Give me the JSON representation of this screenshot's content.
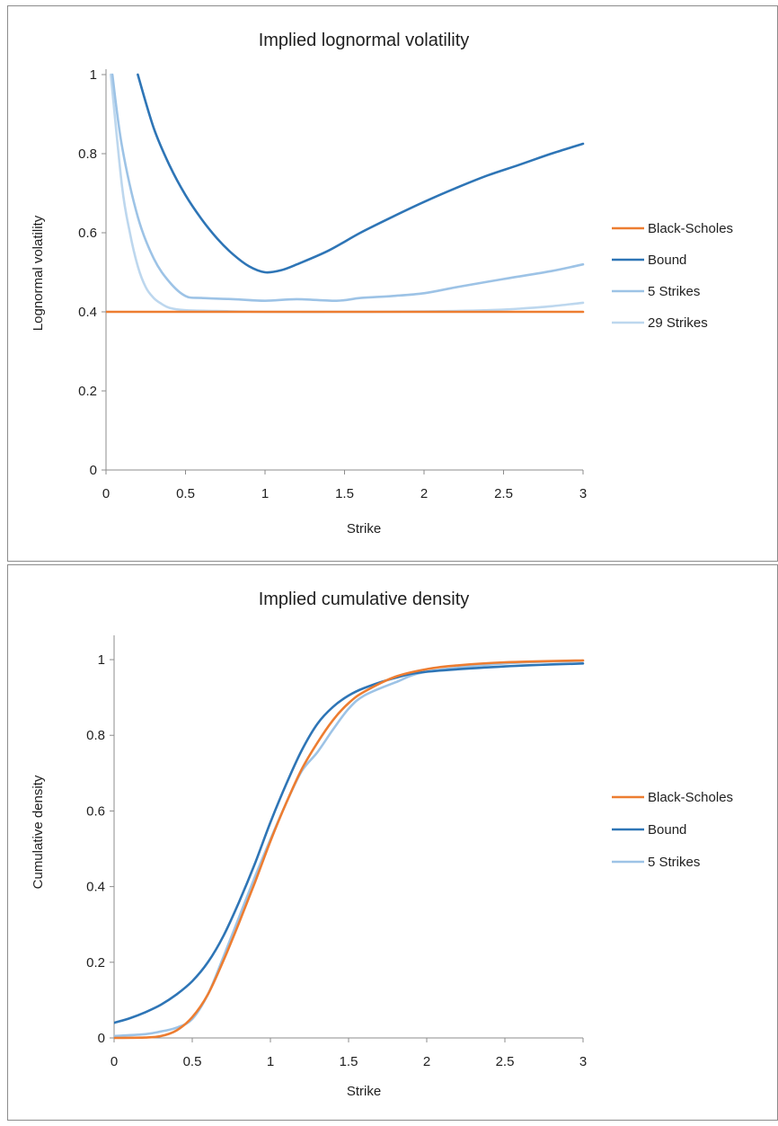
{
  "chart_data": [
    {
      "type": "line",
      "title": "Implied lognormal volatility",
      "xlabel": "Strike",
      "ylabel": "Lognormal volatility",
      "xlim": [
        0,
        3
      ],
      "ylim": [
        0,
        1
      ],
      "xticks": [
        "0",
        "0.5",
        "1",
        "1.5",
        "2",
        "2.5",
        "3"
      ],
      "yticks": [
        "0",
        "0.2",
        "0.4",
        "0.6",
        "0.8",
        "1"
      ],
      "grid": false,
      "legend": "right",
      "series": [
        {
          "name": "Black-Scholes",
          "color": "#ED7D31",
          "x": [
            0,
            3
          ],
          "y": [
            0.4,
            0.4
          ]
        },
        {
          "name": "Bound",
          "color": "#2E75B6",
          "x": [
            0.2,
            0.3,
            0.4,
            0.5,
            0.6,
            0.7,
            0.8,
            0.9,
            1.0,
            1.1,
            1.2,
            1.4,
            1.6,
            1.8,
            2.0,
            2.2,
            2.4,
            2.6,
            2.8,
            3.0
          ],
          "y": [
            1.0,
            0.865,
            0.77,
            0.695,
            0.635,
            0.585,
            0.545,
            0.515,
            0.5,
            0.505,
            0.52,
            0.555,
            0.6,
            0.64,
            0.678,
            0.713,
            0.745,
            0.772,
            0.8,
            0.825
          ]
        },
        {
          "name": "5 Strikes",
          "color": "#9DC3E6",
          "x": [
            0.04,
            0.1,
            0.2,
            0.3,
            0.4,
            0.5,
            0.6,
            0.8,
            1.0,
            1.2,
            1.45,
            1.6,
            1.8,
            2.0,
            2.2,
            2.5,
            2.8,
            3.0
          ],
          "y": [
            1.0,
            0.82,
            0.64,
            0.535,
            0.475,
            0.44,
            0.435,
            0.432,
            0.428,
            0.432,
            0.428,
            0.435,
            0.44,
            0.447,
            0.462,
            0.483,
            0.503,
            0.52
          ]
        },
        {
          "name": "29 Strikes",
          "color": "#BDD7EE",
          "x": [
            0.03,
            0.1,
            0.15,
            0.2,
            0.25,
            0.3,
            0.35,
            0.4,
            0.5,
            0.7,
            1.0,
            1.5,
            2.0,
            2.4,
            2.6,
            2.8,
            3.0
          ],
          "y": [
            1.0,
            0.72,
            0.6,
            0.515,
            0.462,
            0.435,
            0.42,
            0.41,
            0.404,
            0.402,
            0.4,
            0.4,
            0.401,
            0.404,
            0.408,
            0.414,
            0.423
          ]
        }
      ]
    },
    {
      "type": "line",
      "title": "Implied cumulative density",
      "xlabel": "Strike",
      "ylabel": "Cumulative density",
      "xlim": [
        0,
        3
      ],
      "ylim": [
        0,
        1.05
      ],
      "xticks": [
        "0",
        "0.5",
        "1",
        "1.5",
        "2",
        "2.5",
        "3"
      ],
      "yticks": [
        "0",
        "0.2",
        "0.4",
        "0.6",
        "0.8",
        "1"
      ],
      "grid": false,
      "legend": "right",
      "series": [
        {
          "name": "Black-Scholes",
          "color": "#ED7D31",
          "x": [
            0,
            0.2,
            0.3,
            0.4,
            0.5,
            0.6,
            0.7,
            0.8,
            0.9,
            1.0,
            1.1,
            1.2,
            1.3,
            1.4,
            1.5,
            1.6,
            1.8,
            2.0,
            2.2,
            2.5,
            3.0
          ],
          "y": [
            0,
            0.001,
            0.005,
            0.02,
            0.055,
            0.115,
            0.205,
            0.305,
            0.41,
            0.52,
            0.62,
            0.71,
            0.78,
            0.84,
            0.885,
            0.915,
            0.955,
            0.975,
            0.985,
            0.993,
            0.998
          ]
        },
        {
          "name": "Bound",
          "color": "#2E75B6",
          "x": [
            0,
            0.1,
            0.2,
            0.3,
            0.4,
            0.5,
            0.6,
            0.7,
            0.8,
            0.9,
            1.0,
            1.1,
            1.2,
            1.3,
            1.4,
            1.5,
            1.6,
            1.8,
            2.0,
            2.5,
            3.0
          ],
          "y": [
            0.04,
            0.052,
            0.068,
            0.088,
            0.115,
            0.15,
            0.2,
            0.27,
            0.36,
            0.46,
            0.57,
            0.67,
            0.76,
            0.83,
            0.875,
            0.905,
            0.925,
            0.952,
            0.968,
            0.982,
            0.99
          ]
        },
        {
          "name": "5 Strikes",
          "color": "#9DC3E6",
          "x": [
            0,
            0.2,
            0.3,
            0.4,
            0.5,
            0.6,
            0.7,
            0.8,
            0.9,
            1.0,
            1.1,
            1.2,
            1.3,
            1.4,
            1.5,
            1.6,
            1.8,
            2.0,
            2.5,
            3.0
          ],
          "y": [
            0.005,
            0.01,
            0.017,
            0.027,
            0.05,
            0.115,
            0.215,
            0.32,
            0.425,
            0.525,
            0.62,
            0.705,
            0.755,
            0.815,
            0.87,
            0.905,
            0.94,
            0.968,
            0.99,
            0.997
          ]
        }
      ]
    }
  ]
}
